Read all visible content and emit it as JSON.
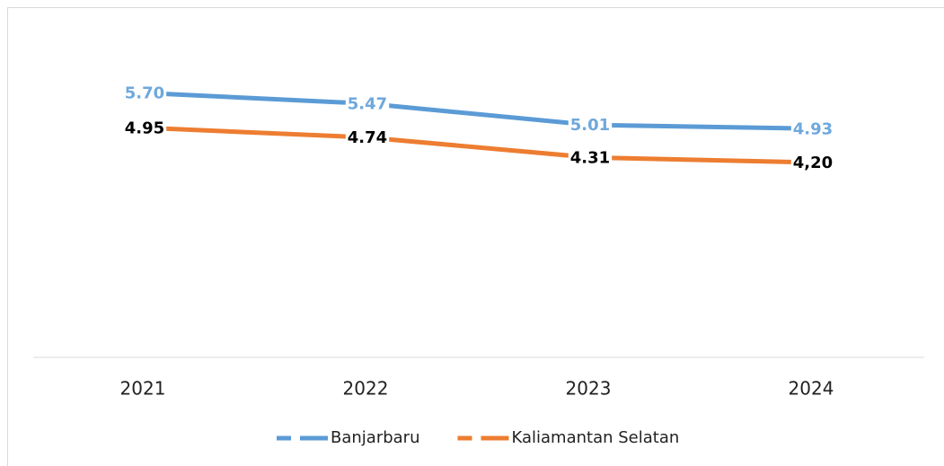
{
  "chart_data": {
    "type": "line",
    "categories": [
      "2021",
      "2022",
      "2023",
      "2024"
    ],
    "series": [
      {
        "name": "Banjarbaru",
        "color": "#5b9bd5",
        "label_color": "#6fa8dc",
        "values": [
          5.7,
          5.47,
          5.01,
          4.93
        ],
        "value_labels": [
          "5.70",
          "5.47",
          "5.01",
          "4.93"
        ]
      },
      {
        "name": "Kaliamantan Selatan",
        "color": "#ed7d31",
        "label_color": "#000000",
        "values": [
          4.95,
          4.74,
          4.31,
          4.2
        ],
        "value_labels": [
          "4.95",
          "4.74",
          "4.31",
          "4,20"
        ]
      }
    ],
    "ylim": [
      0,
      6
    ],
    "legend": "bottom"
  }
}
